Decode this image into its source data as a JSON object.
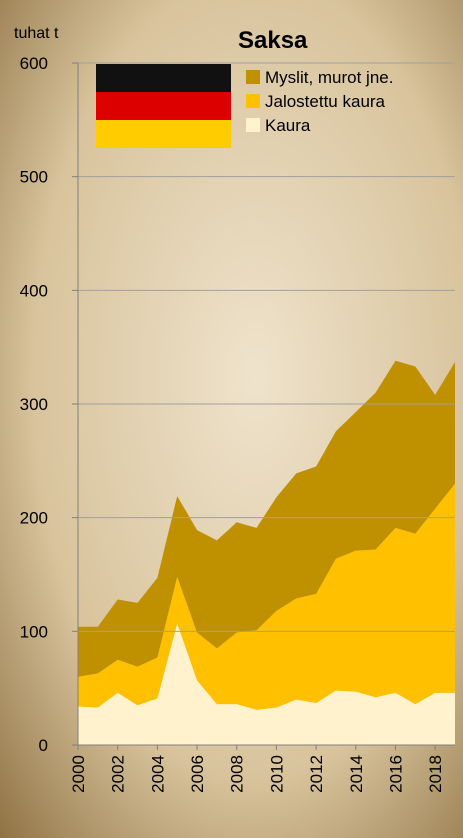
{
  "chart_data": {
    "type": "stacked-area",
    "title": "Saksa",
    "y_label": "tuhat t",
    "x": [
      2000,
      2001,
      2002,
      2003,
      2004,
      2005,
      2006,
      2007,
      2008,
      2009,
      2010,
      2011,
      2012,
      2013,
      2014,
      2015,
      2016,
      2017,
      2018,
      2019
    ],
    "xlim": [
      2000,
      2019
    ],
    "xticks": [
      2000,
      2002,
      2004,
      2006,
      2008,
      2010,
      2012,
      2014,
      2016,
      2018
    ],
    "ylim": [
      0,
      600
    ],
    "yticks": [
      0,
      100,
      200,
      300,
      400,
      500,
      600
    ],
    "grid": true,
    "legend": "top-right",
    "series": [
      {
        "name": "Myslit, murot jne.",
        "color": "#bf9000",
        "values": [
          44,
          41,
          53,
          56,
          70,
          71,
          90,
          95,
          97,
          90,
          100,
          110,
          112,
          112,
          122,
          138,
          147,
          147,
          100,
          107
        ]
      },
      {
        "name": "Jalostettu kaura",
        "color": "#ffc000",
        "values": [
          26,
          30,
          29,
          34,
          36,
          41,
          42,
          49,
          63,
          70,
          85,
          89,
          96,
          116,
          124,
          130,
          145,
          150,
          162,
          184
        ]
      },
      {
        "name": "Kaura",
        "color": "#fff2cc",
        "values": [
          34,
          33,
          46,
          35,
          41,
          107,
          57,
          36,
          36,
          31,
          33,
          40,
          37,
          48,
          47,
          42,
          46,
          36,
          46,
          46
        ]
      }
    ]
  }
}
